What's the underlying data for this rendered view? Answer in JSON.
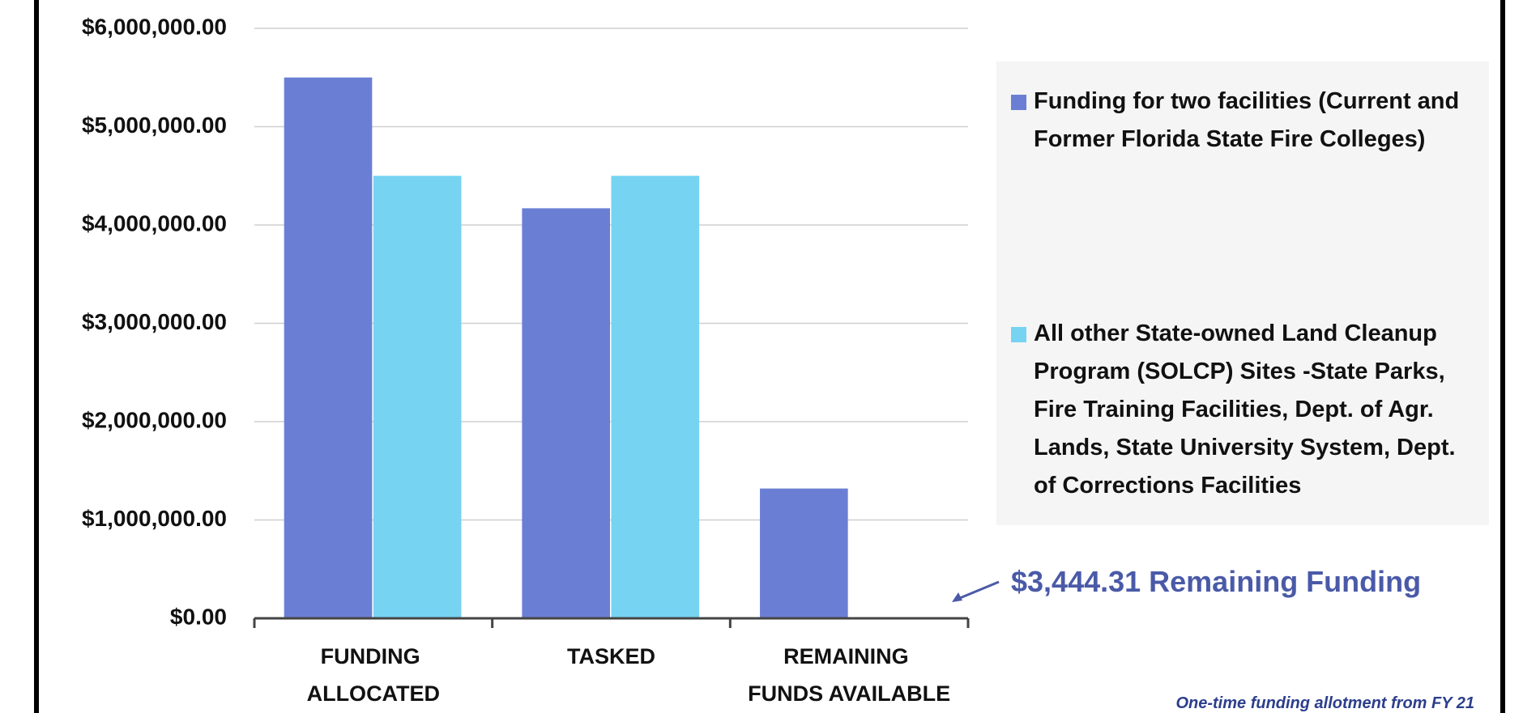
{
  "chart_data": {
    "type": "bar",
    "categories": [
      "FUNDING ALLOCATED",
      "TASKED",
      "REMAINING FUNDS AVAILABLE"
    ],
    "series": [
      {
        "name": "Funding for two facilities (Current and Former Florida State Fire Colleges)",
        "color": "#6a7fd4",
        "values": [
          5500000,
          4170000,
          1320000
        ]
      },
      {
        "name": "All other State-owned Land Cleanup Program (SOLCP) Sites -State Parks, Fire Training Facilities, Dept. of Agr. Lands, State University System, Dept. of Corrections Facilities",
        "color": "#76d3f2",
        "values": [
          4500000,
          4500000,
          3444.31
        ]
      }
    ],
    "ylim": [
      0,
      6000000
    ],
    "yticks": [
      {
        "value": 0,
        "label": "$0.00"
      },
      {
        "value": 1000000,
        "label": "$1,000,000.00"
      },
      {
        "value": 2000000,
        "label": "$2,000,000.00"
      },
      {
        "value": 3000000,
        "label": "$3,000,000.00"
      },
      {
        "value": 4000000,
        "label": "$4,000,000.00"
      },
      {
        "value": 5000000,
        "label": "$5,000,000.00"
      },
      {
        "value": 6000000,
        "label": "$6,000,000.00"
      }
    ],
    "grid": true,
    "legend": "right",
    "annotation": "$3,444.31 Remaining Funding",
    "footnote": "One-time funding allotment from FY 21"
  }
}
